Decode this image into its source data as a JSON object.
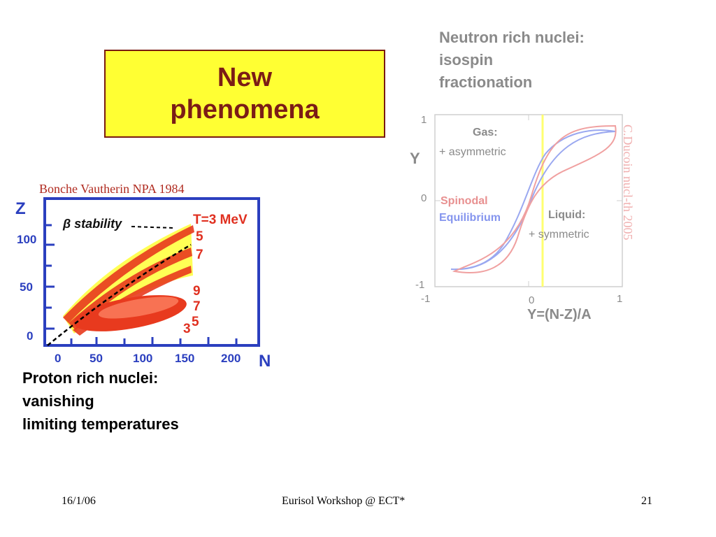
{
  "title": {
    "lines": [
      "New",
      "phenomena"
    ]
  },
  "top_right": {
    "lines": [
      "Neutron rich nuclei:",
      "isospin",
      "fractionation"
    ]
  },
  "bottom_left": {
    "lines": [
      "Proton rich nuclei:",
      "vanishing",
      "limiting temperatures"
    ]
  },
  "left_figure": {
    "citation": "Bonche Vautherin NPA 1984",
    "z_axis_label": "Z",
    "n_axis_label": "N",
    "y_ticks": [
      "100",
      "50",
      "0"
    ],
    "x_ticks": [
      "0",
      "50",
      "100",
      "150",
      "200"
    ],
    "beta_label": "β stability",
    "temperature_labels": [
      "T=3 MeV",
      "5",
      "7",
      "9",
      "7",
      "5",
      "3"
    ]
  },
  "right_figure": {
    "y_axis_label": "Y",
    "x_axis_label": "Y=(N-Z)/A",
    "y_ticks": [
      "1",
      "0",
      "-1"
    ],
    "x_ticks": [
      "-1",
      "0",
      "1"
    ],
    "gas_label": "Gas:",
    "gas_desc": "+ asymmetric",
    "liquid_label": "Liquid:",
    "liquid_desc": "+ symmetric",
    "spinodal_label": "Spinodal",
    "equilibrium_label": "Equilibrium",
    "credit": "C.Ducoin nucl-th 2005",
    "colors": {
      "spinodal": "#f0a0a0",
      "equilibrium": "#9aa8f0",
      "marker": "#ffff70"
    }
  },
  "footer": {
    "date": "16/1/06",
    "event": "Eurisol Workshop @ ECT*",
    "page": "21"
  }
}
